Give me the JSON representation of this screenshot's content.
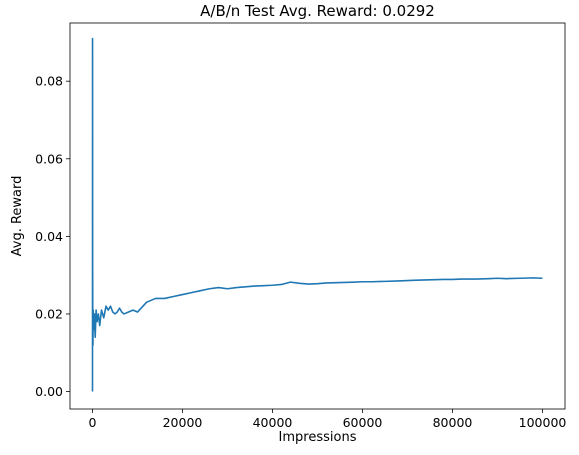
{
  "chart_data": {
    "type": "line",
    "title": "A/B/n Test Avg. Reward: 0.0292",
    "xlabel": "Impressions",
    "ylabel": "Avg. Reward",
    "xlim": [
      -5000,
      105000
    ],
    "ylim": [
      -0.0045,
      0.095
    ],
    "xticks": [
      0,
      20000,
      40000,
      60000,
      80000,
      100000
    ],
    "xtick_labels": [
      "0",
      "20000",
      "40000",
      "60000",
      "80000",
      "100000"
    ],
    "yticks": [
      0.0,
      0.02,
      0.04,
      0.06,
      0.08
    ],
    "ytick_labels": [
      "0.00",
      "0.02",
      "0.04",
      "0.06",
      "0.08"
    ],
    "grid": false,
    "series": [
      {
        "color": "#1f77b4",
        "x": [
          0,
          10,
          30,
          60,
          100,
          150,
          250,
          400,
          600,
          800,
          1000,
          1300,
          1600,
          2000,
          2500,
          3000,
          3500,
          4000,
          4500,
          5000,
          5500,
          6000,
          6500,
          7000,
          8000,
          9000,
          10000,
          12000,
          14000,
          16000,
          18000,
          20000,
          22000,
          24000,
          26000,
          28000,
          30000,
          32000,
          34000,
          36000,
          38000,
          40000,
          42000,
          44000,
          46000,
          48000,
          50000,
          52000,
          55000,
          58000,
          60000,
          62000,
          65000,
          68000,
          70000,
          72000,
          75000,
          78000,
          80000,
          82000,
          85000,
          88000,
          90000,
          92000,
          95000,
          98000,
          100000
        ],
        "y": [
          0.0,
          0.091,
          0.033,
          0.018,
          0.012,
          0.021,
          0.016,
          0.02,
          0.014,
          0.021,
          0.018,
          0.02,
          0.017,
          0.021,
          0.019,
          0.022,
          0.021,
          0.022,
          0.0205,
          0.02,
          0.0205,
          0.0215,
          0.0205,
          0.02,
          0.0205,
          0.021,
          0.0205,
          0.023,
          0.024,
          0.024,
          0.0245,
          0.025,
          0.0255,
          0.026,
          0.0265,
          0.0268,
          0.0265,
          0.0268,
          0.027,
          0.0272,
          0.0273,
          0.0274,
          0.0276,
          0.0282,
          0.0279,
          0.0277,
          0.0278,
          0.028,
          0.0281,
          0.0282,
          0.0283,
          0.0283,
          0.0284,
          0.0285,
          0.0286,
          0.0287,
          0.0288,
          0.0289,
          0.0289,
          0.029,
          0.029,
          0.0291,
          0.0292,
          0.0291,
          0.0292,
          0.0293,
          0.0292
        ]
      }
    ]
  }
}
